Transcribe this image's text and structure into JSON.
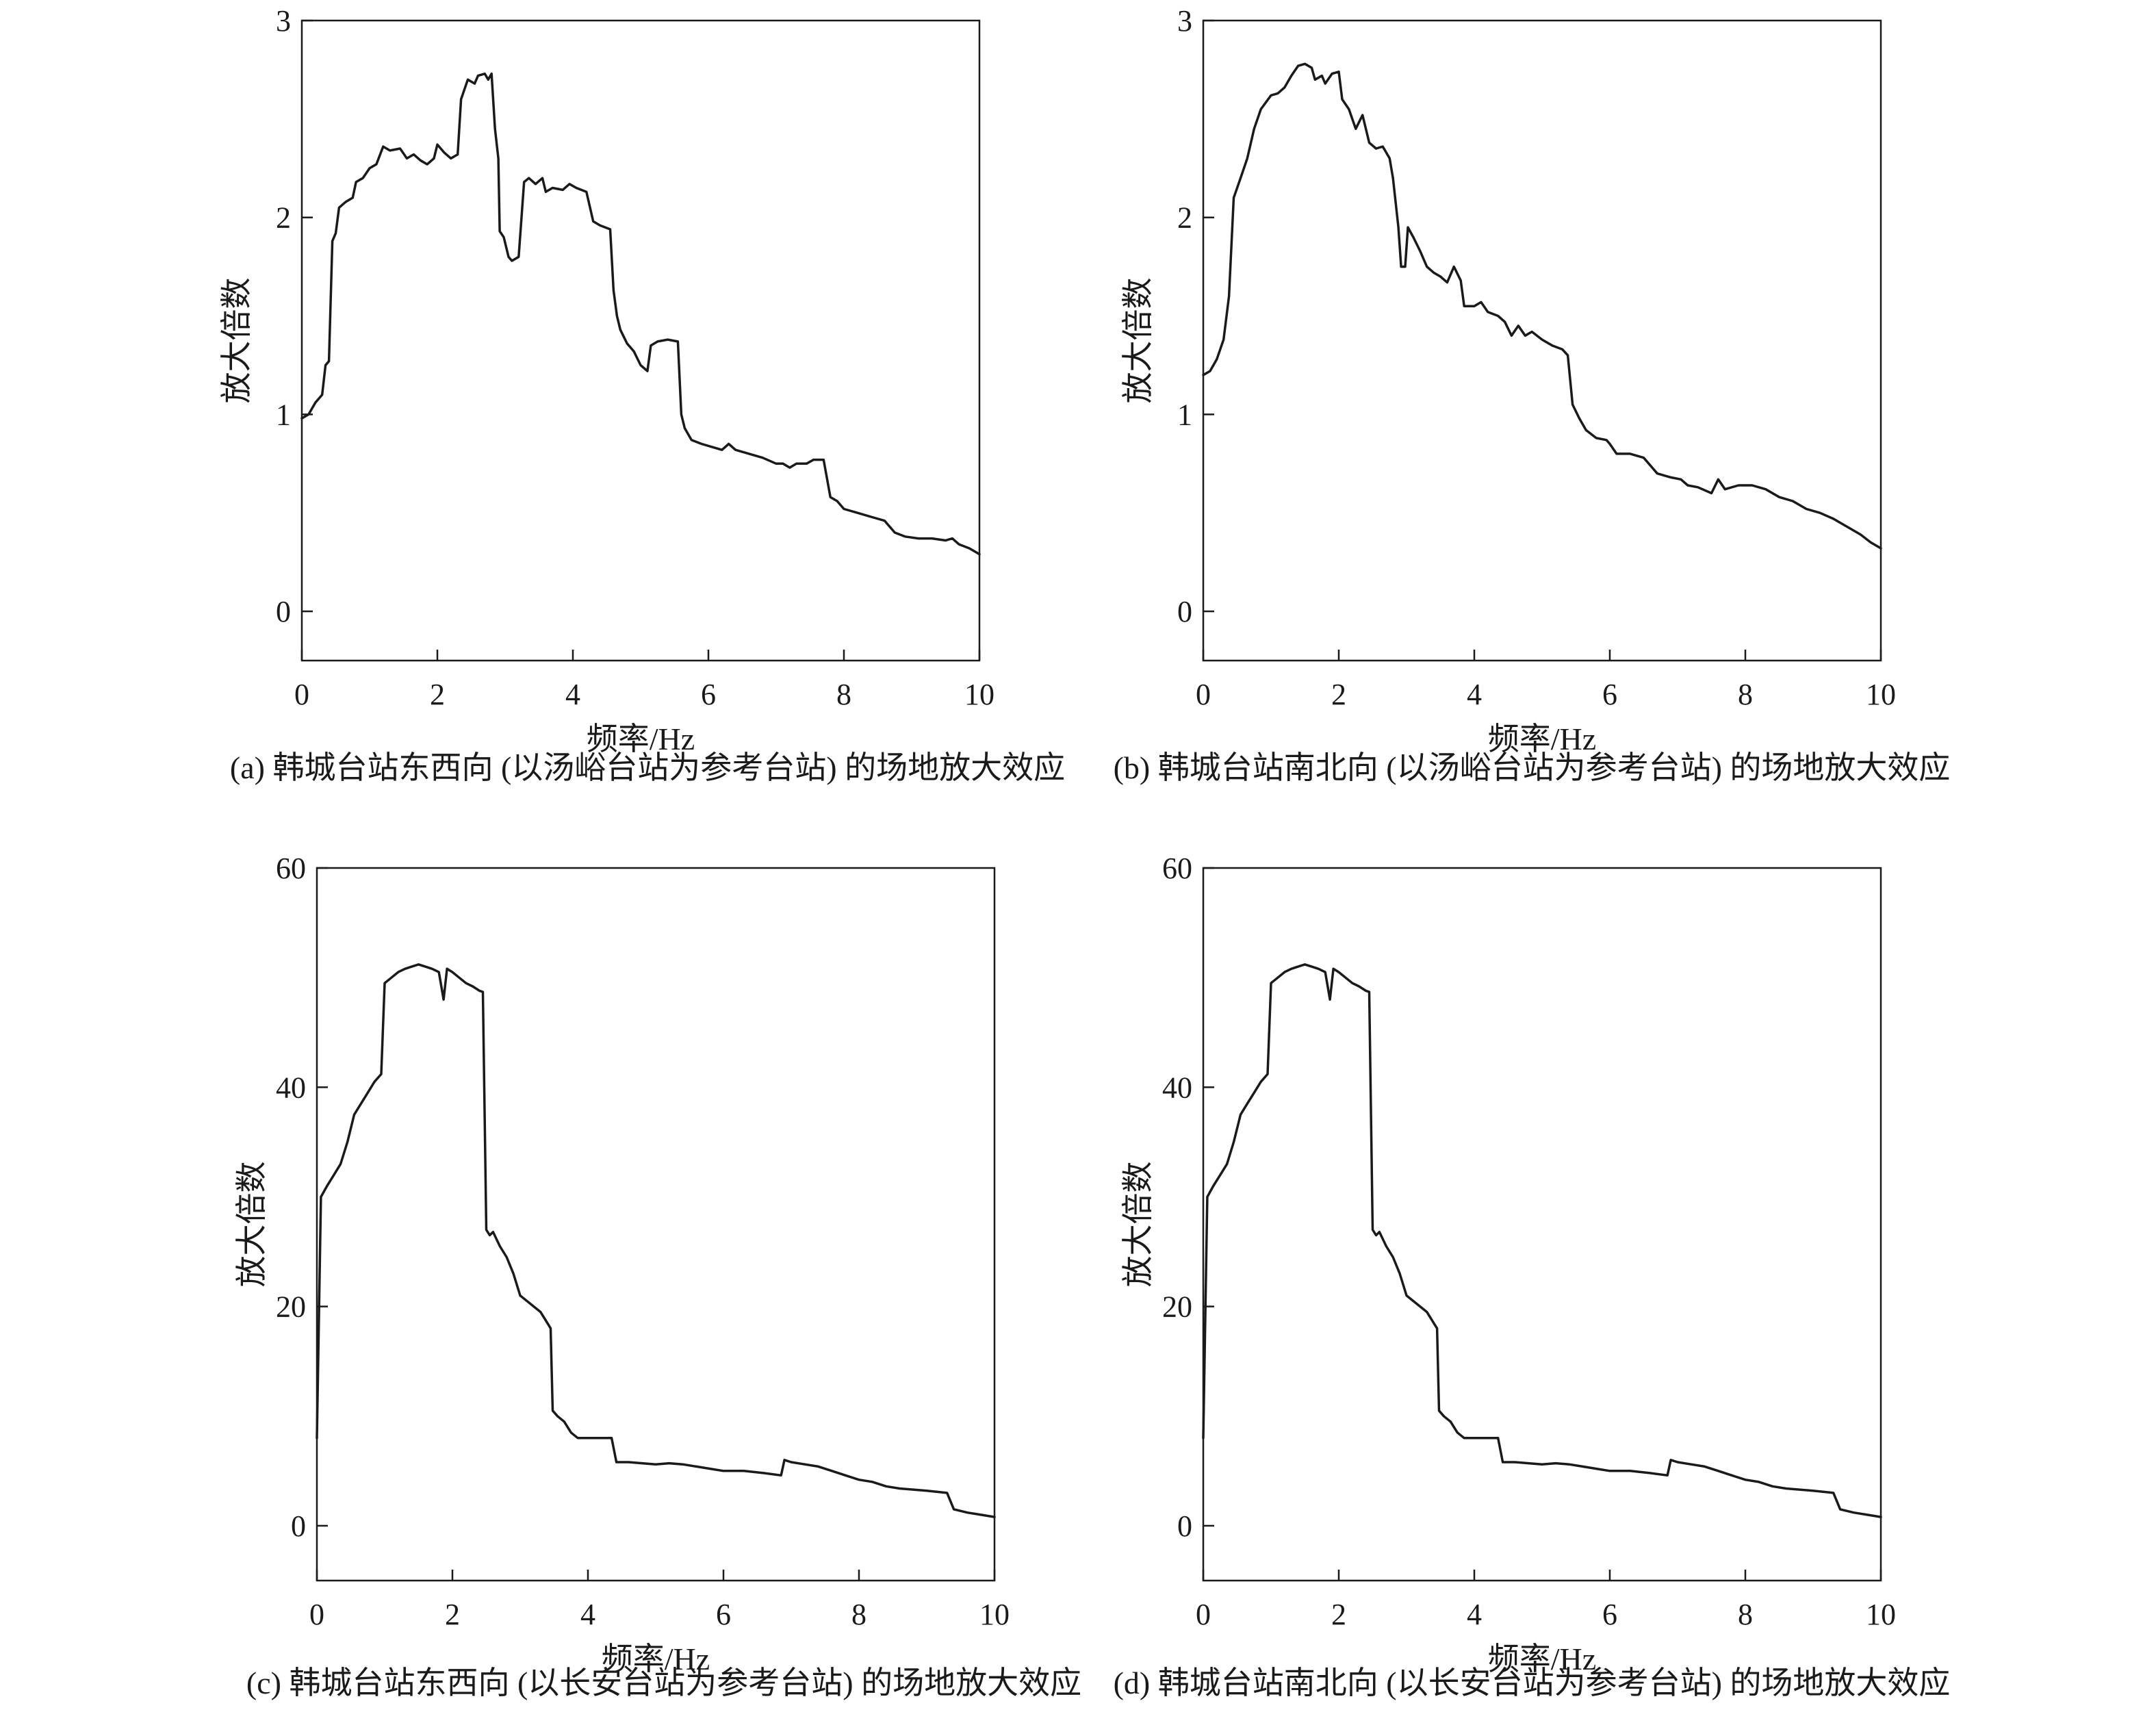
{
  "figure": {
    "panels": [
      {
        "id": "a",
        "caption": "(a) 韩城台站东西向 (以汤峪台站为参考台站) 的场地放大效应"
      },
      {
        "id": "b",
        "caption": "(b) 韩城台站南北向 (以汤峪台站为参考台站) 的场地放大效应"
      },
      {
        "id": "c",
        "caption": "(c) 韩城台站东西向 (以长安台站为参考台站) 的场地放大效应"
      },
      {
        "id": "d",
        "caption": "(d) 韩城台站南北向 (以长安台站为参考台站) 的场地放大效应"
      }
    ]
  },
  "chart_data": [
    {
      "id": "a",
      "type": "line",
      "xlabel": "频率/Hz",
      "ylabel": "放大倍数",
      "xlim": [
        0,
        10
      ],
      "ylim": [
        -0.25,
        3
      ],
      "xticks": [
        0,
        2,
        4,
        6,
        8,
        10
      ],
      "yticks": [
        0,
        1,
        2,
        3
      ],
      "grid": false,
      "line_color": "#1a1a1a",
      "points": [
        [
          0,
          0.98
        ],
        [
          0.1,
          1.0
        ],
        [
          0.2,
          1.06
        ],
        [
          0.3,
          1.1
        ],
        [
          0.35,
          1.25
        ],
        [
          0.4,
          1.27
        ],
        [
          0.45,
          1.88
        ],
        [
          0.5,
          1.92
        ],
        [
          0.55,
          2.05
        ],
        [
          0.65,
          2.08
        ],
        [
          0.75,
          2.1
        ],
        [
          0.8,
          2.18
        ],
        [
          0.9,
          2.2
        ],
        [
          1.0,
          2.25
        ],
        [
          1.1,
          2.27
        ],
        [
          1.2,
          2.36
        ],
        [
          1.3,
          2.34
        ],
        [
          1.45,
          2.35
        ],
        [
          1.55,
          2.3
        ],
        [
          1.65,
          2.32
        ],
        [
          1.75,
          2.29
        ],
        [
          1.85,
          2.27
        ],
        [
          1.95,
          2.3
        ],
        [
          2.0,
          2.37
        ],
        [
          2.1,
          2.33
        ],
        [
          2.2,
          2.3
        ],
        [
          2.3,
          2.32
        ],
        [
          2.35,
          2.6
        ],
        [
          2.45,
          2.7
        ],
        [
          2.55,
          2.68
        ],
        [
          2.6,
          2.72
        ],
        [
          2.7,
          2.73
        ],
        [
          2.75,
          2.7
        ],
        [
          2.8,
          2.73
        ],
        [
          2.85,
          2.45
        ],
        [
          2.9,
          2.3
        ],
        [
          2.92,
          1.93
        ],
        [
          2.98,
          1.9
        ],
        [
          3.05,
          1.8
        ],
        [
          3.1,
          1.78
        ],
        [
          3.2,
          1.8
        ],
        [
          3.28,
          2.18
        ],
        [
          3.35,
          2.2
        ],
        [
          3.45,
          2.17
        ],
        [
          3.55,
          2.2
        ],
        [
          3.6,
          2.13
        ],
        [
          3.7,
          2.15
        ],
        [
          3.85,
          2.14
        ],
        [
          3.95,
          2.17
        ],
        [
          4.05,
          2.15
        ],
        [
          4.2,
          2.13
        ],
        [
          4.3,
          1.98
        ],
        [
          4.4,
          1.96
        ],
        [
          4.55,
          1.94
        ],
        [
          4.6,
          1.63
        ],
        [
          4.65,
          1.5
        ],
        [
          4.7,
          1.43
        ],
        [
          4.8,
          1.36
        ],
        [
          4.9,
          1.32
        ],
        [
          5.0,
          1.25
        ],
        [
          5.1,
          1.22
        ],
        [
          5.15,
          1.35
        ],
        [
          5.25,
          1.37
        ],
        [
          5.4,
          1.38
        ],
        [
          5.55,
          1.37
        ],
        [
          5.6,
          1.0
        ],
        [
          5.65,
          0.93
        ],
        [
          5.75,
          0.87
        ],
        [
          5.9,
          0.85
        ],
        [
          6.1,
          0.83
        ],
        [
          6.2,
          0.82
        ],
        [
          6.3,
          0.85
        ],
        [
          6.4,
          0.82
        ],
        [
          6.6,
          0.8
        ],
        [
          6.8,
          0.78
        ],
        [
          7.0,
          0.75
        ],
        [
          7.1,
          0.75
        ],
        [
          7.2,
          0.73
        ],
        [
          7.3,
          0.75
        ],
        [
          7.45,
          0.75
        ],
        [
          7.55,
          0.77
        ],
        [
          7.7,
          0.77
        ],
        [
          7.8,
          0.58
        ],
        [
          7.9,
          0.56
        ],
        [
          8.0,
          0.52
        ],
        [
          8.2,
          0.5
        ],
        [
          8.4,
          0.48
        ],
        [
          8.6,
          0.46
        ],
        [
          8.75,
          0.4
        ],
        [
          8.9,
          0.38
        ],
        [
          9.1,
          0.37
        ],
        [
          9.3,
          0.37
        ],
        [
          9.5,
          0.36
        ],
        [
          9.6,
          0.37
        ],
        [
          9.7,
          0.34
        ],
        [
          9.85,
          0.32
        ],
        [
          10.0,
          0.29
        ]
      ]
    },
    {
      "id": "b",
      "type": "line",
      "xlabel": "频率/Hz",
      "ylabel": "放大倍数",
      "xlim": [
        0,
        10
      ],
      "ylim": [
        -0.25,
        3
      ],
      "xticks": [
        0,
        2,
        4,
        6,
        8,
        10
      ],
      "yticks": [
        0,
        1,
        2,
        3
      ],
      "grid": false,
      "line_color": "#1a1a1a",
      "points": [
        [
          0,
          1.2
        ],
        [
          0.1,
          1.22
        ],
        [
          0.2,
          1.28
        ],
        [
          0.3,
          1.38
        ],
        [
          0.38,
          1.6
        ],
        [
          0.45,
          2.1
        ],
        [
          0.55,
          2.2
        ],
        [
          0.65,
          2.3
        ],
        [
          0.75,
          2.45
        ],
        [
          0.85,
          2.55
        ],
        [
          1.0,
          2.62
        ],
        [
          1.1,
          2.63
        ],
        [
          1.2,
          2.66
        ],
        [
          1.3,
          2.72
        ],
        [
          1.4,
          2.77
        ],
        [
          1.5,
          2.78
        ],
        [
          1.6,
          2.76
        ],
        [
          1.65,
          2.7
        ],
        [
          1.75,
          2.72
        ],
        [
          1.8,
          2.68
        ],
        [
          1.9,
          2.73
        ],
        [
          2.0,
          2.74
        ],
        [
          2.05,
          2.6
        ],
        [
          2.15,
          2.55
        ],
        [
          2.25,
          2.45
        ],
        [
          2.35,
          2.52
        ],
        [
          2.45,
          2.38
        ],
        [
          2.55,
          2.35
        ],
        [
          2.65,
          2.36
        ],
        [
          2.75,
          2.3
        ],
        [
          2.8,
          2.2
        ],
        [
          2.88,
          1.95
        ],
        [
          2.92,
          1.75
        ],
        [
          2.98,
          1.75
        ],
        [
          3.02,
          1.95
        ],
        [
          3.1,
          1.9
        ],
        [
          3.2,
          1.83
        ],
        [
          3.3,
          1.75
        ],
        [
          3.4,
          1.72
        ],
        [
          3.5,
          1.7
        ],
        [
          3.6,
          1.67
        ],
        [
          3.7,
          1.75
        ],
        [
          3.8,
          1.68
        ],
        [
          3.85,
          1.55
        ],
        [
          4.0,
          1.55
        ],
        [
          4.1,
          1.57
        ],
        [
          4.2,
          1.52
        ],
        [
          4.35,
          1.5
        ],
        [
          4.45,
          1.47
        ],
        [
          4.55,
          1.4
        ],
        [
          4.65,
          1.45
        ],
        [
          4.75,
          1.4
        ],
        [
          4.85,
          1.42
        ],
        [
          5.0,
          1.38
        ],
        [
          5.15,
          1.35
        ],
        [
          5.3,
          1.33
        ],
        [
          5.38,
          1.3
        ],
        [
          5.45,
          1.05
        ],
        [
          5.55,
          0.98
        ],
        [
          5.65,
          0.92
        ],
        [
          5.8,
          0.88
        ],
        [
          5.95,
          0.87
        ],
        [
          6.0,
          0.85
        ],
        [
          6.1,
          0.8
        ],
        [
          6.3,
          0.8
        ],
        [
          6.5,
          0.78
        ],
        [
          6.7,
          0.7
        ],
        [
          6.9,
          0.68
        ],
        [
          7.05,
          0.67
        ],
        [
          7.15,
          0.64
        ],
        [
          7.3,
          0.63
        ],
        [
          7.5,
          0.6
        ],
        [
          7.6,
          0.67
        ],
        [
          7.7,
          0.62
        ],
        [
          7.9,
          0.64
        ],
        [
          8.1,
          0.64
        ],
        [
          8.3,
          0.62
        ],
        [
          8.5,
          0.58
        ],
        [
          8.7,
          0.56
        ],
        [
          8.9,
          0.52
        ],
        [
          9.1,
          0.5
        ],
        [
          9.3,
          0.47
        ],
        [
          9.5,
          0.43
        ],
        [
          9.7,
          0.39
        ],
        [
          9.85,
          0.35
        ],
        [
          10.0,
          0.32
        ]
      ]
    },
    {
      "id": "c",
      "type": "line",
      "xlabel": "频率/Hz",
      "ylabel": "放大倍数",
      "xlim": [
        0,
        10
      ],
      "ylim": [
        -5,
        60
      ],
      "xticks": [
        0,
        2,
        4,
        6,
        8,
        10
      ],
      "yticks": [
        0,
        20,
        40,
        60
      ],
      "grid": false,
      "line_color": "#1a1a1a",
      "points": [
        [
          0,
          8.0
        ],
        [
          0.06,
          30.0
        ],
        [
          0.15,
          31.0
        ],
        [
          0.25,
          32.0
        ],
        [
          0.35,
          33.0
        ],
        [
          0.45,
          35.0
        ],
        [
          0.55,
          37.5
        ],
        [
          0.65,
          38.5
        ],
        [
          0.75,
          39.5
        ],
        [
          0.85,
          40.5
        ],
        [
          0.95,
          41.2
        ],
        [
          1.0,
          49.5
        ],
        [
          1.1,
          50.0
        ],
        [
          1.2,
          50.5
        ],
        [
          1.3,
          50.8
        ],
        [
          1.4,
          51.0
        ],
        [
          1.5,
          51.2
        ],
        [
          1.6,
          51.0
        ],
        [
          1.7,
          50.8
        ],
        [
          1.8,
          50.5
        ],
        [
          1.87,
          48.0
        ],
        [
          1.92,
          50.8
        ],
        [
          2.0,
          50.5
        ],
        [
          2.1,
          50.0
        ],
        [
          2.2,
          49.5
        ],
        [
          2.3,
          49.2
        ],
        [
          2.4,
          48.8
        ],
        [
          2.45,
          48.7
        ],
        [
          2.5,
          27.0
        ],
        [
          2.55,
          26.5
        ],
        [
          2.6,
          26.8
        ],
        [
          2.7,
          25.5
        ],
        [
          2.8,
          24.5
        ],
        [
          2.9,
          23.0
        ],
        [
          3.0,
          21.0
        ],
        [
          3.1,
          20.5
        ],
        [
          3.2,
          20.0
        ],
        [
          3.3,
          19.5
        ],
        [
          3.4,
          18.5
        ],
        [
          3.45,
          18.0
        ],
        [
          3.48,
          10.5
        ],
        [
          3.55,
          10.0
        ],
        [
          3.65,
          9.5
        ],
        [
          3.75,
          8.5
        ],
        [
          3.85,
          8.0
        ],
        [
          4.0,
          8.0
        ],
        [
          4.2,
          8.0
        ],
        [
          4.35,
          8.0
        ],
        [
          4.42,
          5.8
        ],
        [
          4.6,
          5.8
        ],
        [
          4.8,
          5.7
        ],
        [
          5.0,
          5.6
        ],
        [
          5.2,
          5.7
        ],
        [
          5.4,
          5.6
        ],
        [
          5.6,
          5.4
        ],
        [
          5.8,
          5.2
        ],
        [
          6.0,
          5.0
        ],
        [
          6.3,
          5.0
        ],
        [
          6.6,
          4.8
        ],
        [
          6.85,
          4.6
        ],
        [
          6.9,
          6.0
        ],
        [
          7.0,
          5.8
        ],
        [
          7.2,
          5.6
        ],
        [
          7.4,
          5.4
        ],
        [
          7.6,
          5.0
        ],
        [
          7.8,
          4.6
        ],
        [
          8.0,
          4.2
        ],
        [
          8.2,
          4.0
        ],
        [
          8.4,
          3.6
        ],
        [
          8.6,
          3.4
        ],
        [
          8.8,
          3.3
        ],
        [
          9.0,
          3.2
        ],
        [
          9.3,
          3.0
        ],
        [
          9.4,
          1.5
        ],
        [
          9.6,
          1.2
        ],
        [
          9.8,
          1.0
        ],
        [
          10.0,
          0.8
        ]
      ]
    },
    {
      "id": "d",
      "type": "line",
      "xlabel": "频率/Hz",
      "ylabel": "放大倍数",
      "xlim": [
        0,
        10
      ],
      "ylim": [
        -5,
        60
      ],
      "xticks": [
        0,
        2,
        4,
        6,
        8,
        10
      ],
      "yticks": [
        0,
        20,
        40,
        60
      ],
      "grid": false,
      "line_color": "#1a1a1a",
      "points": [
        [
          0,
          8.0
        ],
        [
          0.06,
          30.0
        ],
        [
          0.15,
          31.0
        ],
        [
          0.25,
          32.0
        ],
        [
          0.35,
          33.0
        ],
        [
          0.45,
          35.0
        ],
        [
          0.55,
          37.5
        ],
        [
          0.65,
          38.5
        ],
        [
          0.75,
          39.5
        ],
        [
          0.85,
          40.5
        ],
        [
          0.95,
          41.2
        ],
        [
          1.0,
          49.5
        ],
        [
          1.1,
          50.0
        ],
        [
          1.2,
          50.5
        ],
        [
          1.3,
          50.8
        ],
        [
          1.4,
          51.0
        ],
        [
          1.5,
          51.2
        ],
        [
          1.6,
          51.0
        ],
        [
          1.7,
          50.8
        ],
        [
          1.8,
          50.5
        ],
        [
          1.87,
          48.0
        ],
        [
          1.92,
          50.8
        ],
        [
          2.0,
          50.5
        ],
        [
          2.1,
          50.0
        ],
        [
          2.2,
          49.5
        ],
        [
          2.3,
          49.2
        ],
        [
          2.4,
          48.8
        ],
        [
          2.45,
          48.7
        ],
        [
          2.5,
          27.0
        ],
        [
          2.55,
          26.5
        ],
        [
          2.6,
          26.8
        ],
        [
          2.7,
          25.5
        ],
        [
          2.8,
          24.5
        ],
        [
          2.9,
          23.0
        ],
        [
          3.0,
          21.0
        ],
        [
          3.1,
          20.5
        ],
        [
          3.2,
          20.0
        ],
        [
          3.3,
          19.5
        ],
        [
          3.4,
          18.5
        ],
        [
          3.45,
          18.0
        ],
        [
          3.48,
          10.5
        ],
        [
          3.55,
          10.0
        ],
        [
          3.65,
          9.5
        ],
        [
          3.75,
          8.5
        ],
        [
          3.85,
          8.0
        ],
        [
          4.0,
          8.0
        ],
        [
          4.2,
          8.0
        ],
        [
          4.35,
          8.0
        ],
        [
          4.42,
          5.8
        ],
        [
          4.6,
          5.8
        ],
        [
          4.8,
          5.7
        ],
        [
          5.0,
          5.6
        ],
        [
          5.2,
          5.7
        ],
        [
          5.4,
          5.6
        ],
        [
          5.6,
          5.4
        ],
        [
          5.8,
          5.2
        ],
        [
          6.0,
          5.0
        ],
        [
          6.3,
          5.0
        ],
        [
          6.6,
          4.8
        ],
        [
          6.85,
          4.6
        ],
        [
          6.9,
          6.0
        ],
        [
          7.0,
          5.8
        ],
        [
          7.2,
          5.6
        ],
        [
          7.4,
          5.4
        ],
        [
          7.6,
          5.0
        ],
        [
          7.8,
          4.6
        ],
        [
          8.0,
          4.2
        ],
        [
          8.2,
          4.0
        ],
        [
          8.4,
          3.6
        ],
        [
          8.6,
          3.4
        ],
        [
          8.8,
          3.3
        ],
        [
          9.0,
          3.2
        ],
        [
          9.3,
          3.0
        ],
        [
          9.4,
          1.5
        ],
        [
          9.6,
          1.2
        ],
        [
          9.8,
          1.0
        ],
        [
          10.0,
          0.8
        ]
      ]
    }
  ]
}
